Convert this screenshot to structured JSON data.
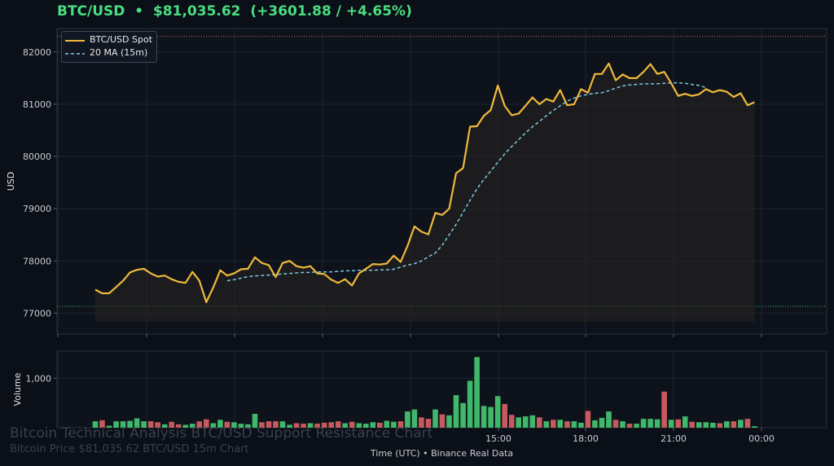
{
  "header": {
    "symbol": "BTC/USD",
    "separator": "•",
    "price": "$81,035.62",
    "change": "(+3601.88 / +4.65%)"
  },
  "watermark": {
    "title": "Bitcoin Technical Analysis BTC/USD Support Resistance Chart",
    "subtitle": "Bitcoin Price $81,035.62 BTC/USD 15m Chart"
  },
  "footer": {
    "text": "Time (UTC)  •  Binance Real Data"
  },
  "colors": {
    "background": "#0b0f17",
    "price_line": "#f0b93a",
    "ma_line": "#7ec8e3",
    "up_volume": "#3fb86a",
    "down_volume": "#c75a5f",
    "resistance": "#e27c7c",
    "support": "#4ade80",
    "headline": "#4ade80"
  },
  "chart_data": [
    {
      "type": "line",
      "xlabel": "",
      "ylabel": "USD",
      "ylim": [
        76600,
        82450
      ],
      "yticks": [
        77000,
        78000,
        79000,
        80000,
        81000,
        82000
      ],
      "ytick_labels": [
        "77000",
        "78000",
        "79000",
        "80000",
        "81000",
        "82000"
      ],
      "legend_position": "top-left",
      "grid": true,
      "reference_lines": [
        {
          "kind": "resistance",
          "value": 82300,
          "style": "dotted"
        },
        {
          "kind": "support",
          "value": 77130,
          "style": "dotted"
        }
      ],
      "fill_baseline": 76840,
      "series": [
        {
          "name": "BTC/USD Spot",
          "values": [
            77450,
            77380,
            77380,
            77500,
            77620,
            77780,
            77830,
            77850,
            77760,
            77700,
            77720,
            77650,
            77600,
            77580,
            77790,
            77620,
            77210,
            77490,
            77820,
            77720,
            77760,
            77840,
            77850,
            78070,
            77960,
            77920,
            77690,
            77960,
            78000,
            77900,
            77870,
            77900,
            77760,
            77750,
            77640,
            77580,
            77650,
            77530,
            77760,
            77850,
            77940,
            77930,
            77950,
            78100,
            77980,
            78290,
            78660,
            78560,
            78510,
            78920,
            78880,
            79000,
            79680,
            79780,
            80570,
            80580,
            80780,
            80890,
            81360,
            80970,
            80790,
            80820,
            80970,
            81130,
            81000,
            81100,
            81050,
            81270,
            80980,
            81000,
            81290,
            81220,
            81580,
            81580,
            81780,
            81460,
            81570,
            81500,
            81500,
            81620,
            81770,
            81580,
            81620,
            81400,
            81160,
            81200,
            81160,
            81190,
            81290,
            81230,
            81270,
            81240,
            81140,
            81210,
            80980,
            81040
          ]
        },
        {
          "name": "20 MA (15m)",
          "offset": 19,
          "values": [
            77620,
            77640,
            77670,
            77700,
            77710,
            77720,
            77730,
            77740,
            77750,
            77760,
            77770,
            77780,
            77780,
            77790,
            77790,
            77790,
            77800,
            77810,
            77810,
            77820,
            77820,
            77820,
            77830,
            77830,
            77840,
            77880,
            77920,
            77950,
            78000,
            78080,
            78150,
            78300,
            78500,
            78700,
            78930,
            79160,
            79380,
            79560,
            79720,
            79890,
            80050,
            80190,
            80320,
            80450,
            80570,
            80670,
            80780,
            80880,
            80970,
            81060,
            81120,
            81160,
            81190,
            81210,
            81220,
            81260,
            81310,
            81350,
            81370,
            81380,
            81390,
            81390,
            81390,
            81400,
            81410,
            81410,
            81400,
            81380,
            81360,
            81320
          ]
        }
      ]
    },
    {
      "type": "bar",
      "xlabel": "Time (UTC)",
      "ylabel": "Volume",
      "ylim": [
        0,
        1550
      ],
      "yticks": [
        1000
      ],
      "ytick_labels": [
        "1,000"
      ],
      "xtick_labels": [
        "15:00",
        "18:00",
        "21:00",
        "00:00"
      ],
      "grid": true,
      "volume": [
        130,
        150,
        40,
        130,
        130,
        140,
        190,
        130,
        130,
        110,
        70,
        120,
        70,
        60,
        80,
        130,
        170,
        90,
        160,
        120,
        110,
        80,
        70,
        280,
        110,
        130,
        130,
        130,
        60,
        90,
        80,
        90,
        80,
        100,
        110,
        130,
        90,
        120,
        90,
        80,
        110,
        100,
        140,
        120,
        130,
        330,
        370,
        210,
        180,
        370,
        270,
        250,
        660,
        500,
        950,
        1430,
        440,
        420,
        640,
        480,
        260,
        210,
        230,
        250,
        210,
        130,
        160,
        160,
        130,
        130,
        100,
        340,
        150,
        200,
        330,
        160,
        130,
        80,
        80,
        180,
        180,
        170,
        730,
        160,
        170,
        230,
        120,
        110,
        110,
        100,
        90,
        130,
        130,
        160,
        180,
        30
      ],
      "direction": [
        "up",
        "down",
        "up",
        "up",
        "up",
        "up",
        "up",
        "up",
        "down",
        "down",
        "up",
        "down",
        "down",
        "up",
        "up",
        "down",
        "down",
        "up",
        "up",
        "down",
        "up",
        "up",
        "up",
        "up",
        "down",
        "down",
        "down",
        "up",
        "up",
        "down",
        "down",
        "up",
        "down",
        "down",
        "down",
        "down",
        "up",
        "down",
        "up",
        "up",
        "up",
        "down",
        "up",
        "up",
        "down",
        "up",
        "up",
        "down",
        "down",
        "up",
        "down",
        "up",
        "up",
        "up",
        "up",
        "up",
        "up",
        "up",
        "up",
        "down",
        "down",
        "up",
        "up",
        "up",
        "down",
        "up",
        "down",
        "up",
        "down",
        "up",
        "up",
        "down",
        "up",
        "up",
        "up",
        "down",
        "up",
        "down",
        "up",
        "up",
        "up",
        "up",
        "down",
        "up",
        "down",
        "up",
        "down",
        "up",
        "up",
        "up",
        "down",
        "up",
        "down",
        "up",
        "down",
        "up"
      ]
    }
  ]
}
